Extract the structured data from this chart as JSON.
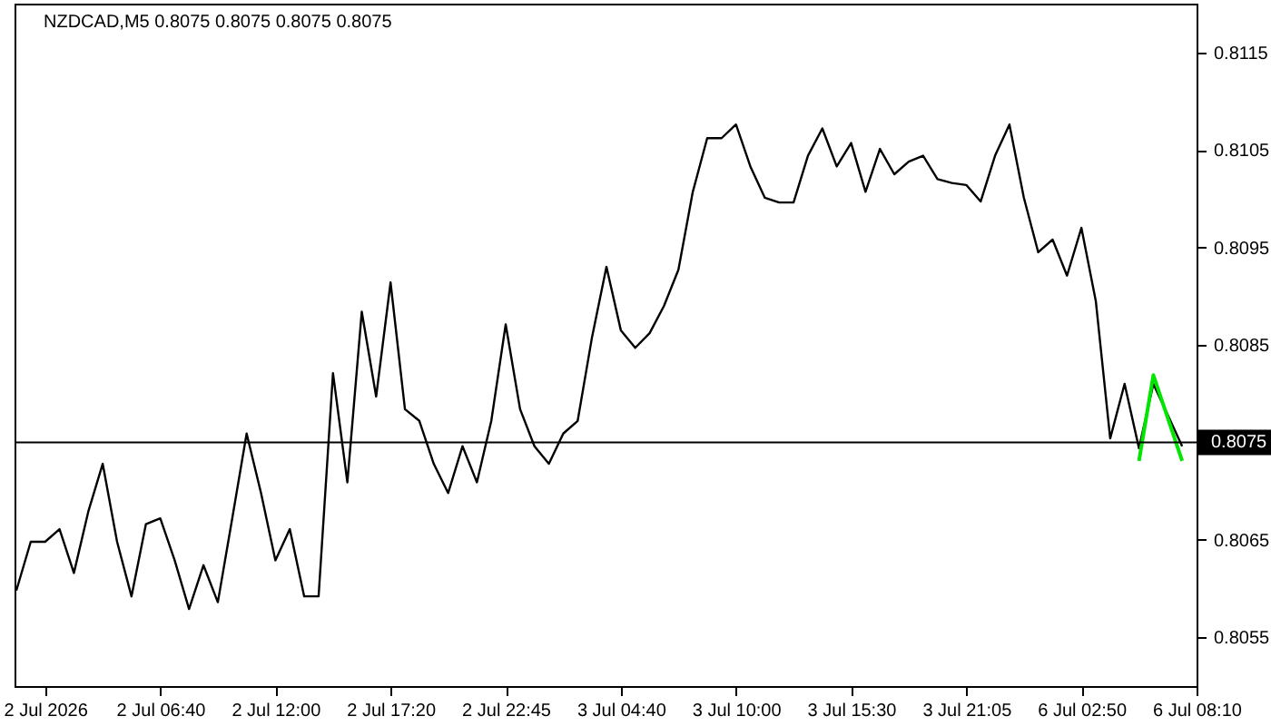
{
  "chart_data": {
    "type": "line",
    "title": "NZDCAD,M5  0.8075 0.8075 0.8075 0.8075",
    "categories": [
      null,
      null,
      "2 Jul 2026",
      null,
      null,
      null,
      null,
      null,
      null,
      null,
      "2 Jul 06:40",
      null,
      null,
      null,
      null,
      null,
      null,
      null,
      "2 Jul 12:00",
      null,
      null,
      null,
      null,
      null,
      null,
      null,
      "2 Jul 17:20",
      null,
      null,
      null,
      null,
      null,
      null,
      null,
      "2 Jul 22:45",
      null,
      null,
      null,
      null,
      null,
      null,
      null,
      "3 Jul 04:40",
      null,
      null,
      null,
      null,
      null,
      null,
      null,
      "3 Jul 10:00",
      null,
      null,
      null,
      null,
      null,
      null,
      null,
      "3 Jul 15:30",
      null,
      null,
      null,
      null,
      null,
      null,
      null,
      "3 Jul 21:05",
      null,
      null,
      null,
      null,
      null,
      null,
      null,
      "6 Jul 02:50",
      null,
      null,
      null,
      null,
      null,
      null,
      null,
      "6 Jul 08:10"
    ],
    "series": [
      {
        "color": "#000000",
        "values": [
          0.80598,
          0.80648,
          0.80648,
          0.80661,
          0.80616,
          0.80679,
          0.80728,
          0.80648,
          0.80592,
          0.80666,
          0.80672,
          0.80629,
          0.80579,
          0.80624,
          0.80586,
          0.80672,
          0.80759,
          0.80698,
          0.80629,
          0.80661,
          0.80592,
          0.80592,
          0.80821,
          0.80709,
          0.80884,
          0.80797,
          0.80914,
          0.80784,
          0.80772,
          0.80728,
          0.80698,
          0.80746,
          0.80709,
          0.80772,
          0.80871,
          0.80784,
          0.80746,
          0.80728,
          0.80759,
          0.80772,
          0.80858,
          0.8093,
          0.80865,
          0.80847,
          0.80862,
          0.8089,
          0.80927,
          0.81007,
          0.81062,
          0.81062,
          0.81076,
          0.81033,
          0.81001,
          0.80996,
          0.80996,
          0.81044,
          0.81072,
          0.81033,
          0.81057,
          0.81007,
          0.81051,
          0.81025,
          0.81038,
          0.81044,
          0.8102,
          0.81016,
          0.81014,
          0.80997,
          0.81044,
          0.81076,
          0.81001,
          0.80945,
          0.80958,
          0.80921,
          0.8097,
          0.80895,
          0.80754,
          0.8081,
          0.80744,
          0.8081,
          0.80778,
          0.80746,
          null
        ]
      },
      {
        "color": "#00e600",
        "values": [
          null,
          null,
          null,
          null,
          null,
          null,
          null,
          null,
          null,
          null,
          null,
          null,
          null,
          null,
          null,
          null,
          null,
          null,
          null,
          null,
          null,
          null,
          null,
          null,
          null,
          null,
          null,
          null,
          null,
          null,
          null,
          null,
          null,
          null,
          null,
          null,
          null,
          null,
          null,
          null,
          null,
          null,
          null,
          null,
          null,
          null,
          null,
          null,
          null,
          null,
          null,
          null,
          null,
          null,
          null,
          null,
          null,
          null,
          null,
          null,
          null,
          null,
          null,
          null,
          null,
          null,
          null,
          null,
          null,
          null,
          null,
          null,
          null,
          null,
          null,
          null,
          null,
          null,
          0.80731,
          0.80819,
          null,
          0.80731,
          null
        ]
      }
    ],
    "ylim": [
      0.805,
      0.812
    ],
    "yticks": [
      0.8055,
      0.8065,
      0.8075,
      0.8085,
      0.8095,
      0.8105,
      0.8115
    ],
    "ref_lines": [
      {
        "axis": "y",
        "value": 0.8075,
        "label": "0.8075",
        "color": "#000000"
      }
    ],
    "grid": false,
    "marker": "none",
    "line_style": "solid"
  }
}
